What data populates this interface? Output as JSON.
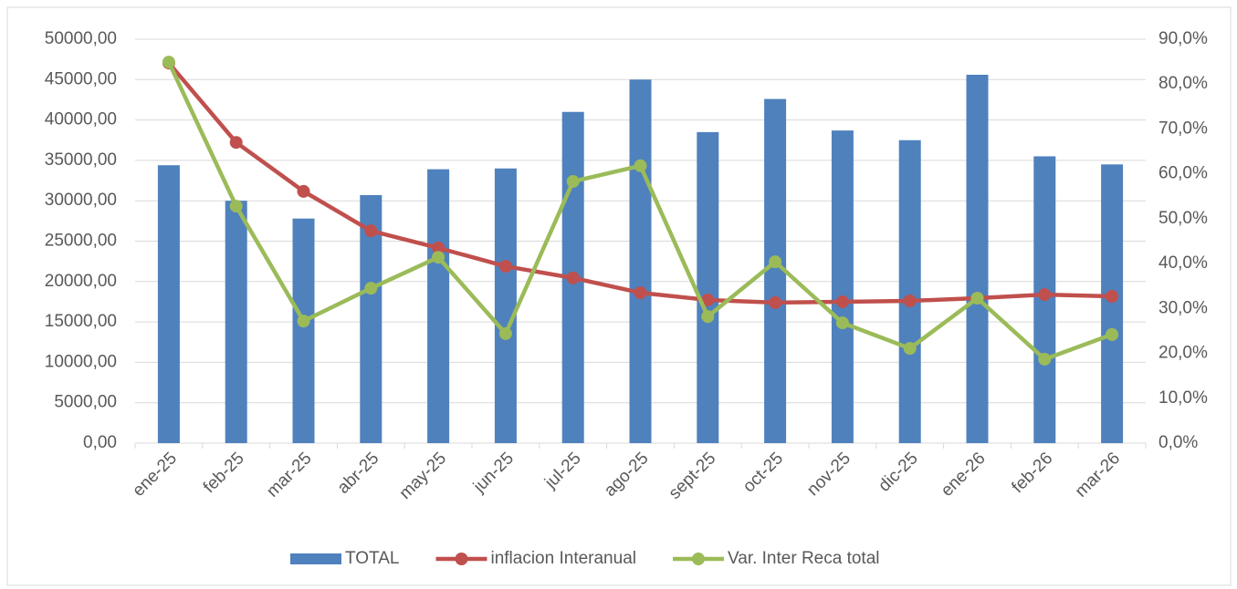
{
  "chart_data": {
    "type": "bar-line",
    "categories": [
      "ene-25",
      "feb-25",
      "mar-25",
      "abr-25",
      "may-25",
      "jun-25",
      "jul-25",
      "ago-25",
      "sept-25",
      "oct-25",
      "nov-25",
      "dic-25",
      "ene-26",
      "feb-26",
      "mar-26"
    ],
    "series": [
      {
        "name": "TOTAL",
        "type": "bar",
        "color": "#4f81bd",
        "values": [
          34400,
          30000,
          27800,
          30700,
          33900,
          34000,
          41000,
          45000,
          38500,
          42600,
          38700,
          37500,
          45600,
          35500,
          34500
        ]
      },
      {
        "name": "inflacion Interanual",
        "type": "line",
        "axis": "y2",
        "color": "#c0504d",
        "values": [
          84.7,
          67.0,
          56.1,
          47.3,
          43.5,
          39.4,
          36.8,
          33.5,
          31.9,
          31.3,
          31.5,
          31.7,
          32.3,
          33.1,
          32.7
        ]
      },
      {
        "name": "Var. Inter Reca total",
        "type": "line",
        "axis": "y2",
        "color": "#9bbb59",
        "values": [
          84.9,
          52.8,
          27.2,
          34.5,
          41.4,
          24.4,
          58.3,
          61.8,
          28.2,
          40.4,
          26.8,
          21.1,
          32.3,
          18.7,
          24.2
        ]
      }
    ],
    "ylim": [
      0,
      50000
    ],
    "yticks": [
      {
        "value": 0,
        "label": "0,00"
      },
      {
        "value": 5000,
        "label": "5000,00"
      },
      {
        "value": 10000,
        "label": "10000,00"
      },
      {
        "value": 15000,
        "label": "15000,00"
      },
      {
        "value": 20000,
        "label": "20000,00"
      },
      {
        "value": 25000,
        "label": "25000,00"
      },
      {
        "value": 30000,
        "label": "30000,00"
      },
      {
        "value": 35000,
        "label": "35000,00"
      },
      {
        "value": 40000,
        "label": "40000,00"
      },
      {
        "value": 45000,
        "label": "45000,00"
      },
      {
        "value": 50000,
        "label": "50000,00"
      }
    ],
    "y2lim": [
      0,
      90
    ],
    "y2ticks": [
      {
        "value": 0,
        "label": "0,0%"
      },
      {
        "value": 10,
        "label": "10,0%"
      },
      {
        "value": 20,
        "label": "20,0%"
      },
      {
        "value": 30,
        "label": "30,0%"
      },
      {
        "value": 40,
        "label": "40,0%"
      },
      {
        "value": 50,
        "label": "50,0%"
      },
      {
        "value": 60,
        "label": "60,0%"
      },
      {
        "value": 70,
        "label": "70,0%"
      },
      {
        "value": 80,
        "label": "80,0%"
      },
      {
        "value": 90,
        "label": "90,0%"
      }
    ],
    "grid": true,
    "legend": "bottom"
  }
}
